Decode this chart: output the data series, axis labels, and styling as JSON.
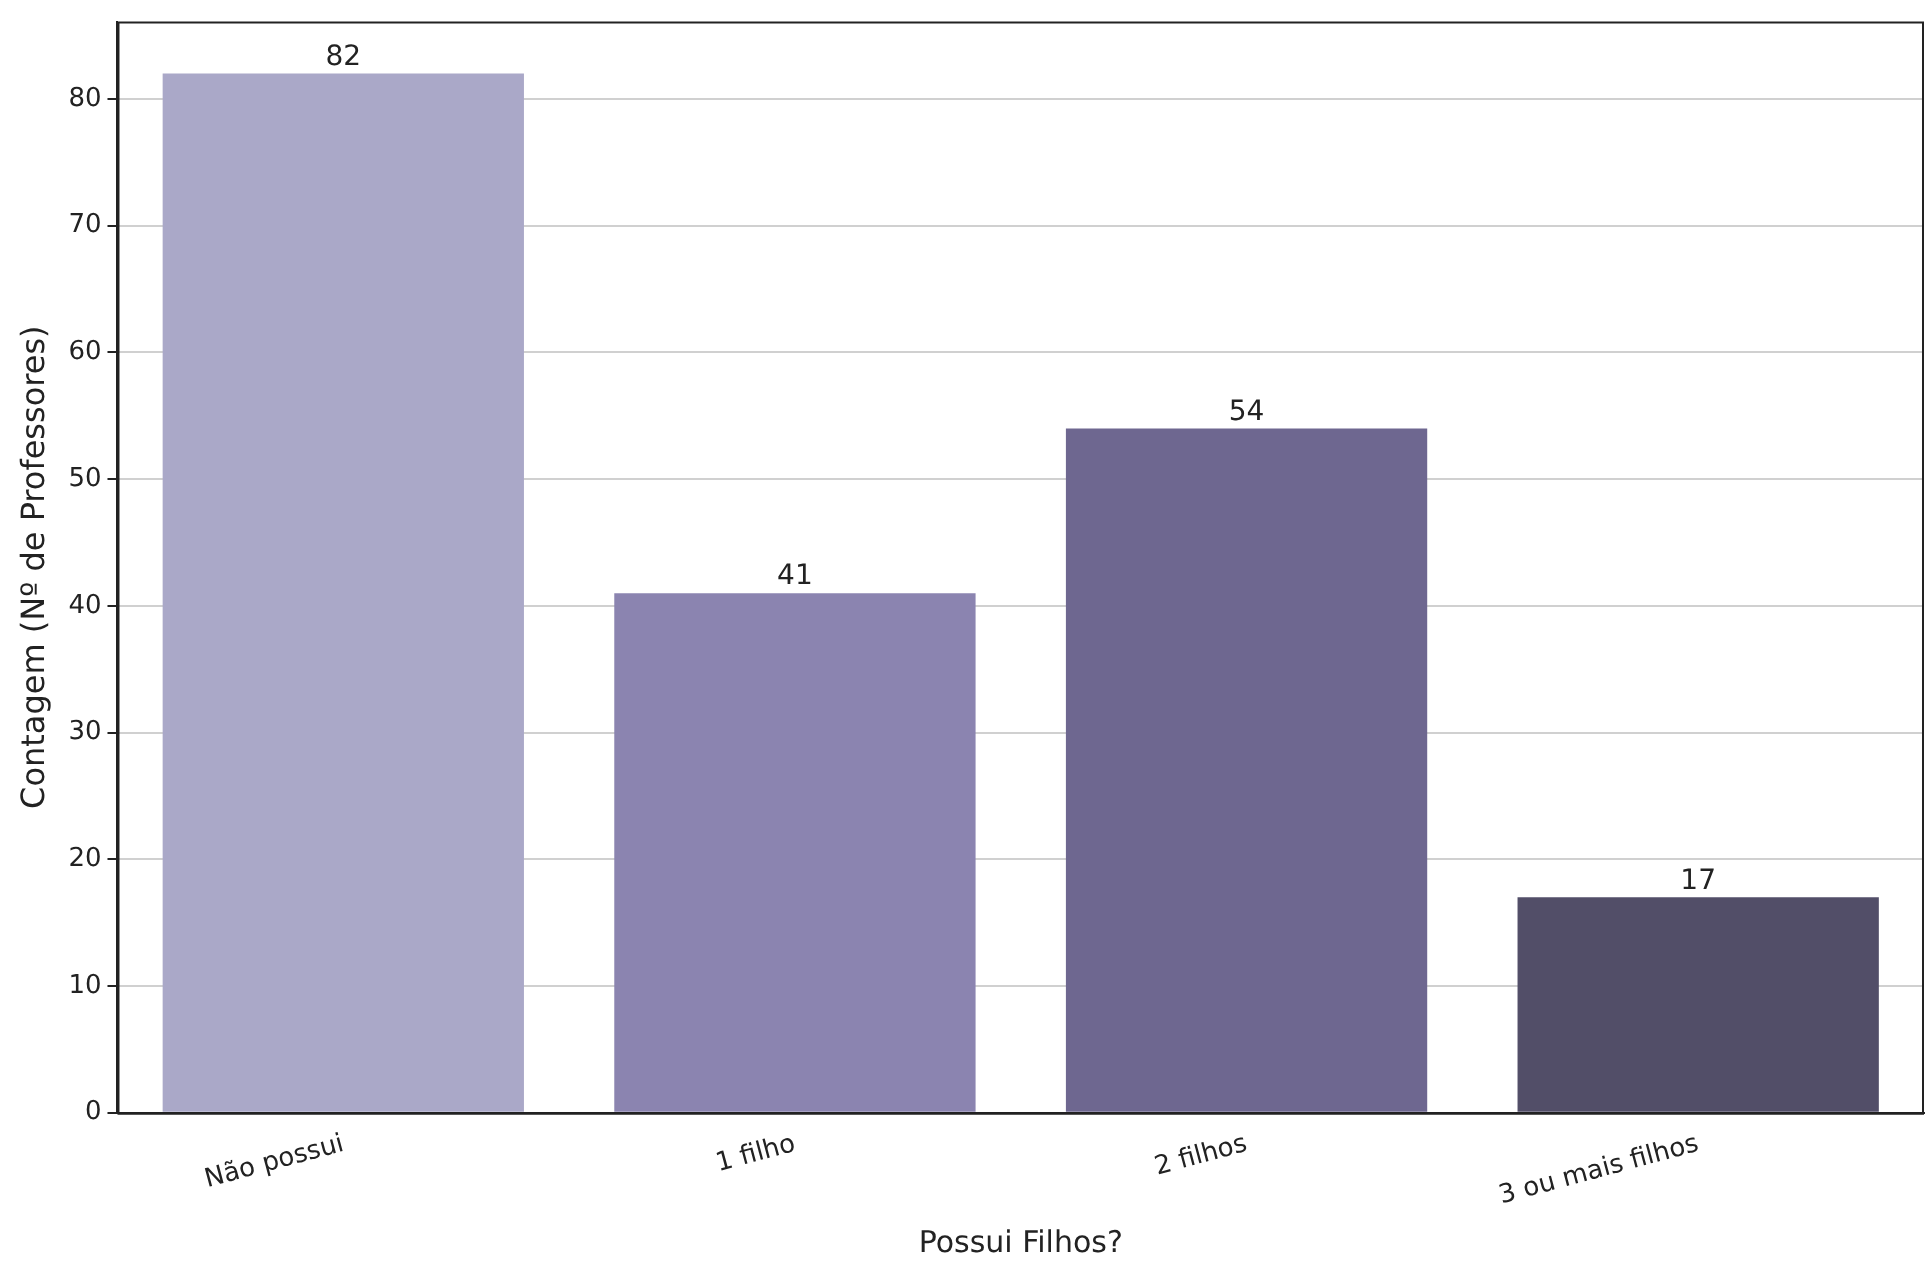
{
  "chart_data": {
    "type": "bar",
    "xlabel": "Possui Filhos?",
    "ylabel": "Contagem (Nº de Professores)",
    "categories": [
      "Não possui",
      "1 filho",
      "2 filhos",
      "3 ou mais filhos"
    ],
    "values": [
      82,
      41,
      54,
      17
    ],
    "colors": [
      "#aaa8c8",
      "#8b84b0",
      "#6e6790",
      "#524e68"
    ],
    "ylim": [
      0,
      86.1
    ],
    "yticks": [
      0,
      10,
      20,
      30,
      40,
      50,
      60,
      70,
      80
    ],
    "grid": "y",
    "data_labels": true,
    "legend": false
  }
}
